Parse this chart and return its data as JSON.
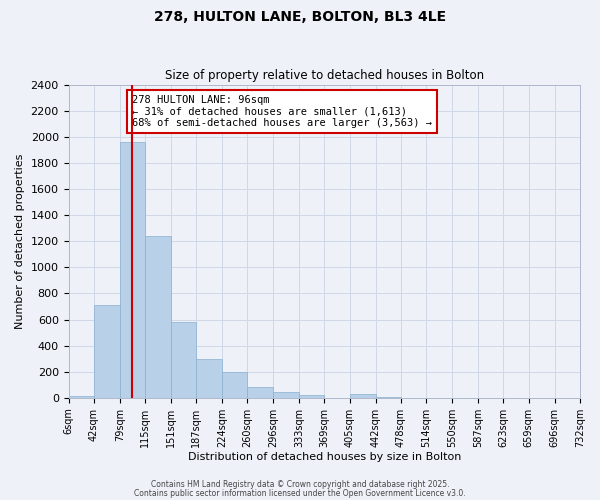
{
  "title": "278, HULTON LANE, BOLTON, BL3 4LE",
  "subtitle": "Size of property relative to detached houses in Bolton",
  "xlabel": "Distribution of detached houses by size in Bolton",
  "ylabel": "Number of detached properties",
  "bar_color": "#b8d0e8",
  "bar_edge_color": "#8ab0d0",
  "bins": [
    6,
    42,
    79,
    115,
    151,
    187,
    224,
    260,
    296,
    333,
    369,
    405,
    442,
    478,
    514,
    550,
    587,
    623,
    659,
    696,
    732
  ],
  "counts": [
    15,
    710,
    1960,
    1240,
    580,
    300,
    200,
    80,
    45,
    25,
    0,
    30,
    5,
    0,
    0,
    0,
    0,
    0,
    0,
    0
  ],
  "tick_labels": [
    "6sqm",
    "42sqm",
    "79sqm",
    "115sqm",
    "151sqm",
    "187sqm",
    "224sqm",
    "260sqm",
    "296sqm",
    "333sqm",
    "369sqm",
    "405sqm",
    "442sqm",
    "478sqm",
    "514sqm",
    "550sqm",
    "587sqm",
    "623sqm",
    "659sqm",
    "696sqm",
    "732sqm"
  ],
  "ylim": [
    0,
    2400
  ],
  "yticks": [
    0,
    200,
    400,
    600,
    800,
    1000,
    1200,
    1400,
    1600,
    1800,
    2000,
    2200,
    2400
  ],
  "vline_x": 96,
  "annotation_title": "278 HULTON LANE: 96sqm",
  "annotation_line1": "← 31% of detached houses are smaller (1,613)",
  "annotation_line2": "68% of semi-detached houses are larger (3,563) →",
  "annotation_box_color": "#ffffff",
  "annotation_box_edge_color": "#cc0000",
  "vline_color": "#cc0000",
  "grid_color": "#d0d8e8",
  "background_color": "#eef2f8",
  "footer1": "Contains HM Land Registry data © Crown copyright and database right 2025.",
  "footer2": "Contains public sector information licensed under the Open Government Licence v3.0."
}
